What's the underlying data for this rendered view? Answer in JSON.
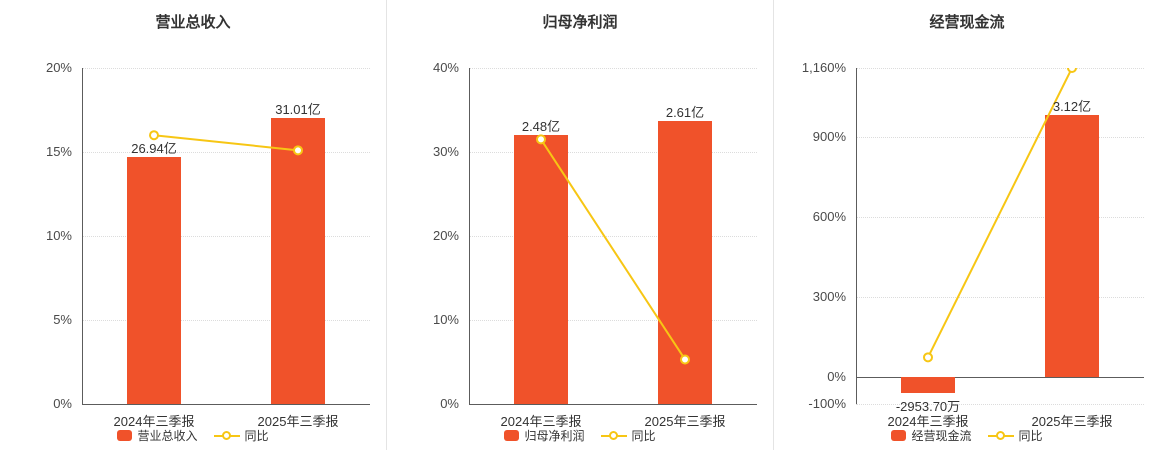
{
  "colors": {
    "bar": "#f0522a",
    "line": "#f7c614",
    "axis": "#5c5c5c",
    "grid": "#dcdcdc",
    "text": "#333333"
  },
  "chart_data": [
    {
      "type": "bar",
      "title": "营业总收入",
      "categories": [
        "2024年三季报",
        "2025年三季报"
      ],
      "ylim": [
        0,
        20
      ],
      "yticks": [
        0,
        5,
        10,
        15,
        20
      ],
      "ytick_labels": [
        "0%",
        "5%",
        "10%",
        "15%",
        "20%"
      ],
      "grid": true,
      "legend_position": "bottom",
      "xlabel": "",
      "ylabel": "",
      "series": [
        {
          "name": "营业总收入",
          "type": "bar",
          "values": [
            14.7,
            17.0
          ],
          "labels": [
            "26.94亿",
            "31.01亿"
          ]
        },
        {
          "name": "同比",
          "type": "line",
          "values": [
            16.0,
            15.1
          ]
        }
      ]
    },
    {
      "type": "bar",
      "title": "归母净利润",
      "categories": [
        "2024年三季报",
        "2025年三季报"
      ],
      "ylim": [
        0,
        40
      ],
      "yticks": [
        0,
        10,
        20,
        30,
        40
      ],
      "ytick_labels": [
        "0%",
        "10%",
        "20%",
        "30%",
        "40%"
      ],
      "grid": true,
      "legend_position": "bottom",
      "xlabel": "",
      "ylabel": "",
      "series": [
        {
          "name": "归母净利润",
          "type": "bar",
          "values": [
            32.0,
            33.7
          ],
          "labels": [
            "2.48亿",
            "2.61亿"
          ]
        },
        {
          "name": "同比",
          "type": "line",
          "values": [
            31.5,
            5.3
          ]
        }
      ]
    },
    {
      "type": "bar",
      "title": "经营现金流",
      "categories": [
        "2024年三季报",
        "2025年三季报"
      ],
      "ylim": [
        -100,
        1160
      ],
      "yticks": [
        -100,
        0,
        300,
        600,
        900,
        1160
      ],
      "ytick_labels": [
        "-100%",
        "0%",
        "300%",
        "600%",
        "900%",
        "1,160%"
      ],
      "grid": true,
      "legend_position": "bottom",
      "xlabel": "",
      "ylabel": "",
      "series": [
        {
          "name": "经营现金流",
          "type": "bar",
          "values": [
            -60,
            985
          ],
          "labels": [
            "-2953.70万",
            "3.12亿"
          ]
        },
        {
          "name": "同比",
          "type": "line",
          "values": [
            75,
            1160
          ]
        }
      ]
    }
  ]
}
